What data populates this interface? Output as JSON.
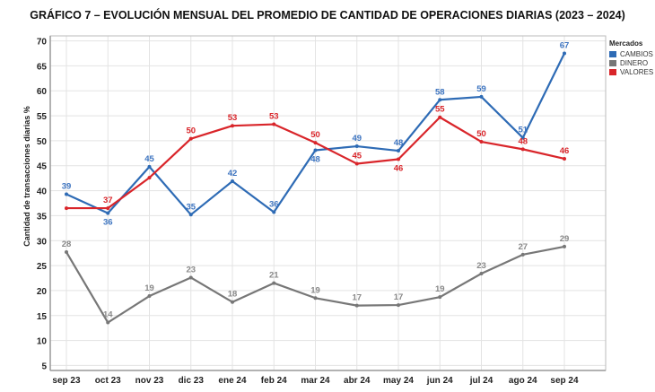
{
  "chart_data": {
    "type": "line",
    "title": "GRÁFICO 7 – EVOLUCIÓN MENSUAL DEL PROMEDIO DE CANTIDAD DE OPERACIONES DIARIAS (2023 – 2024)",
    "xlabel": "",
    "ylabel": "Cantidad de transacciones diarias %",
    "ylim": [
      4,
      71
    ],
    "yticks": [
      5,
      10,
      15,
      20,
      25,
      30,
      35,
      40,
      45,
      50,
      55,
      60,
      65,
      70
    ],
    "grid": true,
    "legend": {
      "title": "Mercados",
      "placement": "right"
    },
    "categories": [
      "sep 23",
      "oct 23",
      "nov 23",
      "dic 23",
      "ene 24",
      "feb 24",
      "mar 24",
      "abr 24",
      "may 24",
      "jun 24",
      "jul 24",
      "ago 24",
      "sep 24"
    ],
    "series": [
      {
        "name": "CAMBIOS",
        "color": "#2e6bb5",
        "labelColor": "#3d74c0",
        "values": [
          39.3,
          35.5,
          44.8,
          35.2,
          41.9,
          35.7,
          48.1,
          48.9,
          48.0,
          58.2,
          58.8,
          50.6,
          67.5
        ],
        "labels": [
          "39",
          "36",
          "45",
          "35",
          "42",
          "36",
          "48",
          "49",
          "48",
          "58",
          "59",
          "51",
          "67"
        ],
        "labelPos": [
          "above",
          "below",
          "above",
          "above",
          "above",
          "above",
          "below",
          "above",
          "above",
          "above",
          "above",
          "above",
          "above"
        ]
      },
      {
        "name": "DINERO",
        "color": "#777777",
        "labelColor": "#888888",
        "values": [
          27.7,
          13.6,
          18.9,
          22.6,
          17.7,
          21.5,
          18.5,
          17.0,
          17.1,
          18.7,
          23.4,
          27.2,
          28.8
        ],
        "labels": [
          "28",
          "14",
          "19",
          "23",
          "18",
          "21",
          "19",
          "17",
          "17",
          "19",
          "23",
          "27",
          "29"
        ],
        "labelPos": [
          "above",
          "above",
          "above",
          "above",
          "above",
          "above",
          "above",
          "above",
          "above",
          "above",
          "above",
          "above",
          "above"
        ]
      },
      {
        "name": "VALORES",
        "color": "#d9252a",
        "labelColor": "#d9252a",
        "values": [
          36.5,
          36.5,
          42.6,
          50.4,
          53.0,
          53.3,
          49.6,
          45.4,
          46.3,
          54.7,
          49.8,
          48.3,
          46.4
        ],
        "labels": [
          null,
          "37",
          null,
          "50",
          "53",
          "53",
          "50",
          "45",
          "46",
          "55",
          "50",
          "48",
          "46"
        ],
        "labelPos": [
          "above",
          "above",
          "above",
          "above",
          "above",
          "above",
          "above",
          "above",
          "below",
          "above",
          "above",
          "above",
          "above"
        ]
      }
    ]
  }
}
